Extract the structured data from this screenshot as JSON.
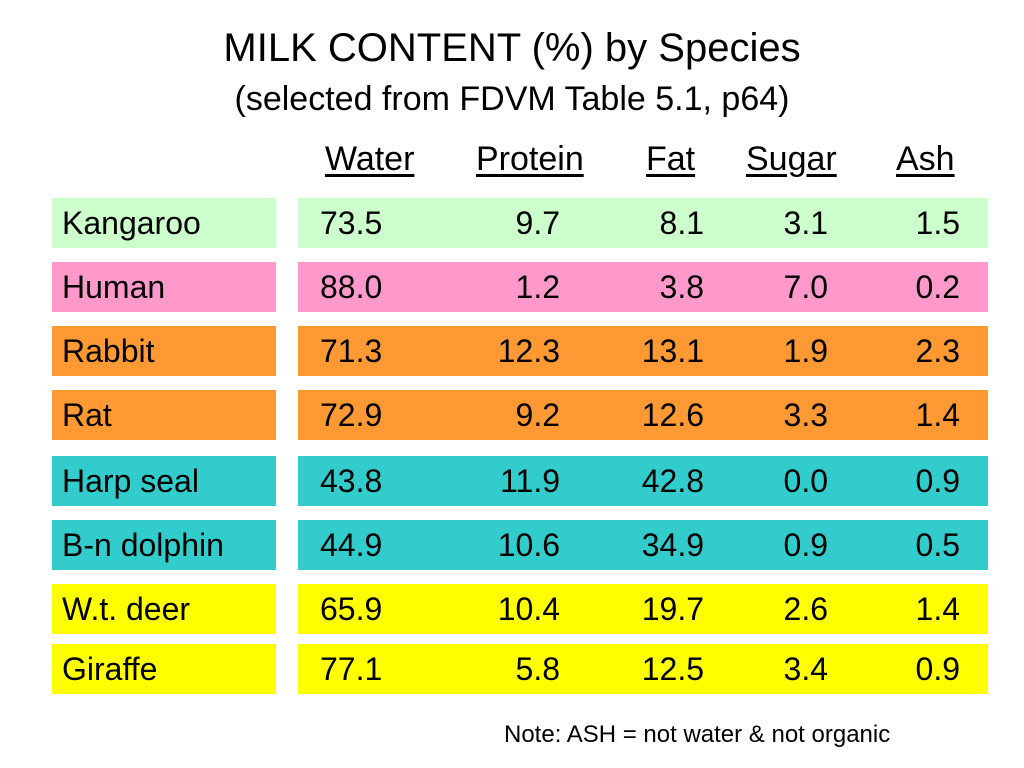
{
  "title": "MILK CONTENT (%) by Species",
  "subtitle": "(selected from FDVM Table 5.1, p64)",
  "columns": [
    "Water",
    "Protein",
    "Fat",
    "Sugar",
    "Ash"
  ],
  "colors": {
    "light_green": "#ccffcc",
    "pink": "#ff99cc",
    "orange": "#ff9933",
    "teal": "#33cccc",
    "yellow": "#ffff00"
  },
  "rows": [
    {
      "species": "Kangaroo",
      "values": [
        "73.5",
        "9.7",
        "8.1",
        "3.1",
        "1.5"
      ],
      "color": "#ccffcc"
    },
    {
      "species": "Human",
      "values": [
        "88.0",
        "1.2",
        "3.8",
        "7.0",
        "0.2"
      ],
      "color": "#ff99cc"
    },
    {
      "species": "Rabbit",
      "values": [
        "71.3",
        "12.3",
        "13.1",
        "1.9",
        "2.3"
      ],
      "color": "#ff9933"
    },
    {
      "species": "Rat",
      "values": [
        "72.9",
        "9.2",
        "12.6",
        "3.3",
        "1.4"
      ],
      "color": "#ff9933"
    },
    {
      "species": "Harp seal",
      "values": [
        "43.8",
        "11.9",
        "42.8",
        "0.0",
        "0.9"
      ],
      "color": "#33cccc"
    },
    {
      "species": "B-n dolphin",
      "values": [
        "44.9",
        "10.6",
        "34.9",
        "0.9",
        "0.5"
      ],
      "color": "#33cccc"
    },
    {
      "species": "W.t. deer",
      "values": [
        "65.9",
        "10.4",
        "19.7",
        "2.6",
        "1.4"
      ],
      "color": "#ffff00"
    },
    {
      "species": "Giraffe",
      "values": [
        "77.1",
        "5.8",
        "12.5",
        "3.4",
        "0.9"
      ],
      "color": "#ffff00"
    }
  ],
  "note": "Note:  ASH = not water & not organic"
}
